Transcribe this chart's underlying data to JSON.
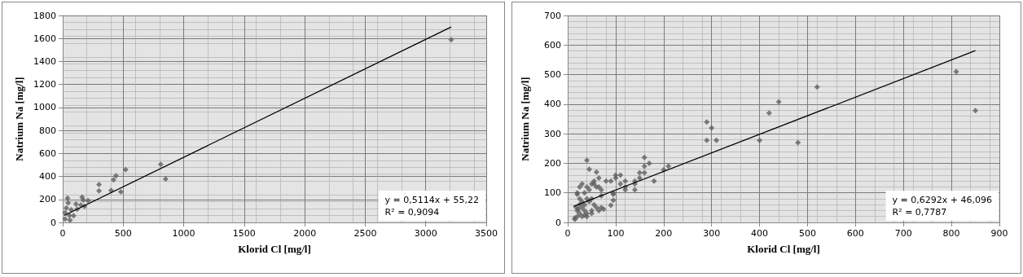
{
  "chart_data": [
    {
      "type": "scatter",
      "xlabel": "Klorid Cl [mg/l]",
      "ylabel": "Natrium Na [mg/l]",
      "xlim": [
        0,
        3500
      ],
      "xticks": [
        0,
        500,
        1000,
        1500,
        2000,
        2500,
        3000,
        3500
      ],
      "ylim": [
        0,
        1800
      ],
      "yticks": [
        0,
        200,
        400,
        600,
        800,
        1000,
        1200,
        1400,
        1600,
        1800
      ],
      "grid": true,
      "marker": "diamond",
      "annotations": [
        "y = 0,5114x + 55,22",
        "R² = 0,9094"
      ],
      "series": [
        {
          "type": "scatter",
          "color": "#5f5f5f",
          "x": [
            3210,
            300,
            300,
            400,
            420,
            440,
            480,
            520,
            810,
            850,
            210,
            160,
            170,
            150,
            180,
            110,
            120,
            90,
            70,
            40,
            45,
            30,
            20,
            55,
            20,
            60
          ],
          "values": [
            1590,
            330,
            275,
            278,
            370,
            405,
            265,
            458,
            505,
            378,
            190,
            220,
            195,
            150,
            140,
            160,
            115,
            58,
            110,
            210,
            170,
            125,
            85,
            60,
            30,
            20
          ]
        },
        {
          "type": "line",
          "color": "#000000",
          "marker": "none",
          "x": [
            12,
            3210
          ],
          "values": [
            60,
            1700
          ]
        }
      ]
    },
    {
      "type": "scatter",
      "xlabel": "Klorid Cl [mg/l]",
      "ylabel": "Natrium Na [mg/l]",
      "xlim": [
        0,
        900
      ],
      "xticks": [
        0,
        100,
        200,
        300,
        400,
        500,
        600,
        700,
        800,
        900
      ],
      "ylim": [
        0,
        700
      ],
      "yticks": [
        0,
        100,
        200,
        300,
        400,
        500,
        600,
        700
      ],
      "grid": true,
      "marker": "diamond",
      "annotations": [
        "y = 0,6292x + 46,096",
        "R² = 0,7787"
      ],
      "series": [
        {
          "type": "scatter",
          "color": "#5f5f5f",
          "x": [
            290,
            300,
            290,
            310,
            400,
            420,
            440,
            480,
            520,
            810,
            850,
            210,
            200,
            160,
            170,
            160,
            160,
            150,
            150,
            180,
            140,
            140,
            140,
            120,
            120,
            120,
            110,
            110,
            100,
            100,
            95,
            95,
            95,
            90,
            90,
            80,
            70,
            70,
            65,
            65,
            60,
            60,
            55,
            55,
            50,
            45,
            40,
            40,
            45,
            30,
            25,
            20,
            20,
            35,
            50,
            55,
            60,
            65,
            70,
            75,
            50,
            50,
            45,
            40,
            35,
            30,
            25,
            25,
            30,
            35,
            40,
            20,
            20,
            15,
            15,
            25,
            30,
            35,
            40,
            18,
            22
          ],
          "values": [
            340,
            320,
            278,
            278,
            278,
            370,
            408,
            270,
            458,
            510,
            378,
            190,
            178,
            220,
            200,
            190,
            168,
            168,
            150,
            140,
            140,
            130,
            110,
            140,
            120,
            110,
            160,
            130,
            160,
            150,
            100,
            95,
            75,
            58,
            140,
            140,
            110,
            90,
            150,
            120,
            120,
            170,
            140,
            130,
            130,
            180,
            210,
            120,
            110,
            130,
            120,
            100,
            95,
            100,
            80,
            60,
            50,
            40,
            50,
            45,
            30,
            40,
            70,
            80,
            60,
            70,
            80,
            60,
            50,
            40,
            30,
            40,
            20,
            15,
            10,
            30,
            20,
            25,
            20,
            50,
            45
          ]
        },
        {
          "type": "line",
          "color": "#000000",
          "marker": "none",
          "x": [
            12,
            850
          ],
          "values": [
            54,
            581
          ]
        }
      ]
    }
  ]
}
